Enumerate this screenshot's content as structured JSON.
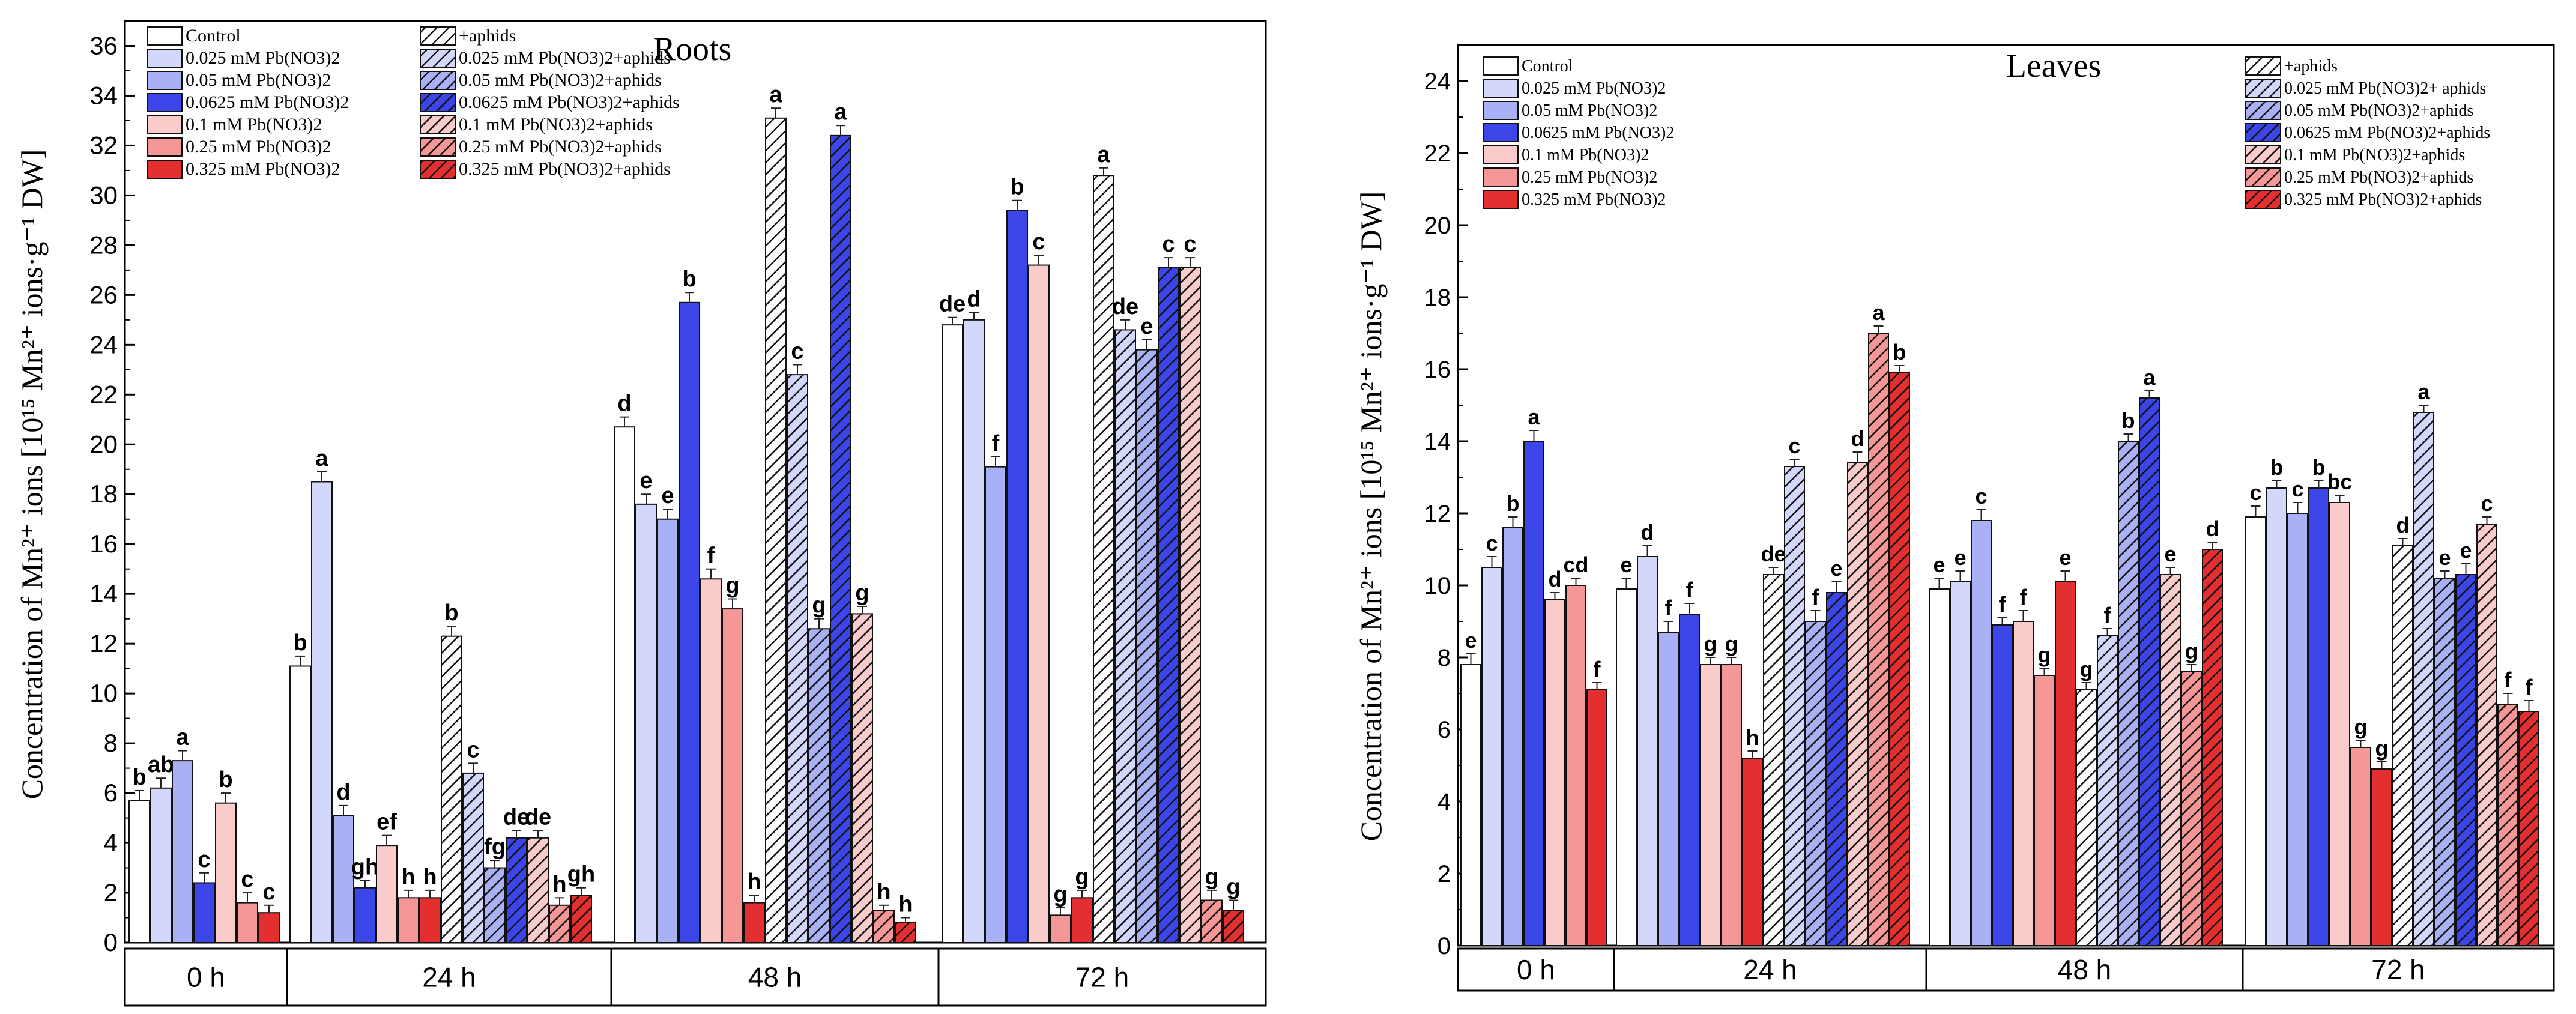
{
  "colors": {
    "control": "#ffffff",
    "pb025": "#d3d7fc",
    "pb05": "#a9b0f4",
    "pb0625": "#3b45e8",
    "pb01": "#f9cccb",
    "pb025b": "#f59796",
    "pb0325": "#e32f2f"
  },
  "chart_data": [
    {
      "type": "bar",
      "title": "Roots",
      "ylabel": "Concentration of Mn²⁺ ions [10¹⁵ Mn²⁺ ions·g⁻¹ DW]",
      "ylim": [
        0,
        37
      ],
      "yticks": [
        0,
        2,
        4,
        6,
        8,
        10,
        12,
        14,
        16,
        18,
        20,
        22,
        24,
        26,
        28,
        30,
        32,
        34,
        36
      ],
      "groups": [
        "0 h",
        "24 h",
        "48 h",
        "72 h"
      ],
      "legend": [
        "Control",
        "0.025 mM Pb(NO3)2",
        "0.05 mM Pb(NO3)2",
        "0.0625 mM Pb(NO3)2",
        "0.1 mM Pb(NO3)2",
        "0.25 mM Pb(NO3)2",
        "0.325 mM Pb(NO3)2",
        "+aphids",
        "0.025 mM Pb(NO3)2+aphids",
        "0.05 mM Pb(NO3)2+aphids",
        "0.0625 mM Pb(NO3)2+aphids",
        "0.1 mM Pb(NO3)2+aphids",
        "0.25 mM Pb(NO3)2+aphids",
        "0.325 mM Pb(NO3)2+aphids"
      ],
      "bars": [
        {
          "group": "0 h",
          "series": 0,
          "value": 5.7,
          "err": 0.4,
          "label": "b"
        },
        {
          "group": "0 h",
          "series": 1,
          "value": 6.2,
          "err": 0.4,
          "label": "ab"
        },
        {
          "group": "0 h",
          "series": 2,
          "value": 7.3,
          "err": 0.4,
          "label": "a"
        },
        {
          "group": "0 h",
          "series": 3,
          "value": 2.4,
          "err": 0.4,
          "label": "c"
        },
        {
          "group": "0 h",
          "series": 4,
          "value": 5.6,
          "err": 0.4,
          "label": "b"
        },
        {
          "group": "0 h",
          "series": 5,
          "value": 1.6,
          "err": 0.4,
          "label": "c"
        },
        {
          "group": "0 h",
          "series": 6,
          "value": 1.2,
          "err": 0.3,
          "label": "c"
        },
        {
          "group": "24 h",
          "series": 0,
          "value": 11.1,
          "err": 0.4,
          "label": "b"
        },
        {
          "group": "24 h",
          "series": 1,
          "value": 18.5,
          "err": 0.4,
          "label": "a"
        },
        {
          "group": "24 h",
          "series": 2,
          "value": 5.1,
          "err": 0.4,
          "label": "d"
        },
        {
          "group": "24 h",
          "series": 3,
          "value": 2.2,
          "err": 0.3,
          "label": "gh"
        },
        {
          "group": "24 h",
          "series": 4,
          "value": 3.9,
          "err": 0.4,
          "label": "ef"
        },
        {
          "group": "24 h",
          "series": 5,
          "value": 1.8,
          "err": 0.3,
          "label": "h"
        },
        {
          "group": "24 h",
          "series": 6,
          "value": 1.8,
          "err": 0.3,
          "label": "h"
        },
        {
          "group": "24 h",
          "series": 7,
          "value": 12.3,
          "err": 0.4,
          "label": "b"
        },
        {
          "group": "24 h",
          "series": 8,
          "value": 6.8,
          "err": 0.4,
          "label": "c"
        },
        {
          "group": "24 h",
          "series": 9,
          "value": 3.0,
          "err": 0.3,
          "label": "fg"
        },
        {
          "group": "24 h",
          "series": 10,
          "value": 4.2,
          "err": 0.3,
          "label": "de"
        },
        {
          "group": "24 h",
          "series": 11,
          "value": 4.2,
          "err": 0.3,
          "label": "de"
        },
        {
          "group": "24 h",
          "series": 12,
          "value": 1.5,
          "err": 0.3,
          "label": "h"
        },
        {
          "group": "24 h",
          "series": 13,
          "value": 1.9,
          "err": 0.3,
          "label": "gh"
        },
        {
          "group": "48 h",
          "series": 0,
          "value": 20.7,
          "err": 0.4,
          "label": "d"
        },
        {
          "group": "48 h",
          "series": 1,
          "value": 17.6,
          "err": 0.4,
          "label": "e"
        },
        {
          "group": "48 h",
          "series": 2,
          "value": 17.0,
          "err": 0.4,
          "label": "e"
        },
        {
          "group": "48 h",
          "series": 3,
          "value": 25.7,
          "err": 0.4,
          "label": "b"
        },
        {
          "group": "48 h",
          "series": 4,
          "value": 14.6,
          "err": 0.4,
          "label": "f"
        },
        {
          "group": "48 h",
          "series": 5,
          "value": 13.4,
          "err": 0.4,
          "label": "g"
        },
        {
          "group": "48 h",
          "series": 6,
          "value": 1.6,
          "err": 0.3,
          "label": "h"
        },
        {
          "group": "48 h",
          "series": 7,
          "value": 33.1,
          "err": 0.4,
          "label": "a"
        },
        {
          "group": "48 h",
          "series": 8,
          "value": 22.8,
          "err": 0.4,
          "label": "c"
        },
        {
          "group": "48 h",
          "series": 9,
          "value": 12.6,
          "err": 0.4,
          "label": "g"
        },
        {
          "group": "48 h",
          "series": 10,
          "value": 32.4,
          "err": 0.4,
          "label": "a"
        },
        {
          "group": "48 h",
          "series": 11,
          "value": 13.2,
          "err": 0.3,
          "label": "g"
        },
        {
          "group": "48 h",
          "series": 12,
          "value": 1.3,
          "err": 0.2,
          "label": "h"
        },
        {
          "group": "48 h",
          "series": 13,
          "value": 0.8,
          "err": 0.2,
          "label": "h"
        },
        {
          "group": "72 h",
          "series": 0,
          "value": 24.8,
          "err": 0.3,
          "label": "de"
        },
        {
          "group": "72 h",
          "series": 1,
          "value": 25.0,
          "err": 0.3,
          "label": "d"
        },
        {
          "group": "72 h",
          "series": 2,
          "value": 19.1,
          "err": 0.4,
          "label": "f"
        },
        {
          "group": "72 h",
          "series": 3,
          "value": 29.4,
          "err": 0.4,
          "label": "b"
        },
        {
          "group": "72 h",
          "series": 4,
          "value": 27.2,
          "err": 0.4,
          "label": "c"
        },
        {
          "group": "72 h",
          "series": 5,
          "value": 1.1,
          "err": 0.3,
          "label": "g"
        },
        {
          "group": "72 h",
          "series": 6,
          "value": 1.8,
          "err": 0.3,
          "label": "g"
        },
        {
          "group": "72 h",
          "series": 7,
          "value": 30.8,
          "err": 0.3,
          "label": "a"
        },
        {
          "group": "72 h",
          "series": 8,
          "value": 24.6,
          "err": 0.4,
          "label": "de"
        },
        {
          "group": "72 h",
          "series": 9,
          "value": 23.8,
          "err": 0.4,
          "label": "e"
        },
        {
          "group": "72 h",
          "series": 10,
          "value": 27.1,
          "err": 0.4,
          "label": "c"
        },
        {
          "group": "72 h",
          "series": 11,
          "value": 27.1,
          "err": 0.4,
          "label": "c"
        },
        {
          "group": "72 h",
          "series": 12,
          "value": 1.7,
          "err": 0.4,
          "label": "g"
        },
        {
          "group": "72 h",
          "series": 13,
          "value": 1.3,
          "err": 0.4,
          "label": "g"
        }
      ]
    },
    {
      "type": "bar",
      "title": "Leaves",
      "ylabel": "Concentration of Mn²⁺ ions [10¹⁵ Mn²⁺ ions·g⁻¹ DW]",
      "ylim": [
        0,
        25
      ],
      "yticks": [
        0,
        2,
        4,
        6,
        8,
        10,
        12,
        14,
        16,
        18,
        20,
        22,
        24
      ],
      "groups": [
        "0 h",
        "24 h",
        "48 h",
        "72 h"
      ],
      "legend": [
        "Control",
        "0.025 mM Pb(NO3)2",
        "0.05 mM Pb(NO3)2",
        "0.0625 mM Pb(NO3)2",
        "0.1 mM Pb(NO3)2",
        "0.25 mM Pb(NO3)2",
        "0.325 mM Pb(NO3)2",
        "+aphids",
        "0.025 mM Pb(NO3)2+ aphids",
        "0.05 mM Pb(NO3)2+aphids",
        "0.0625 mM Pb(NO3)2+aphids",
        "0.1 mM Pb(NO3)2+aphids",
        "0.25 mM Pb(NO3)2+aphids",
        "0.325 mM Pb(NO3)2+aphids"
      ],
      "bars": [
        {
          "group": "0 h",
          "series": 0,
          "value": 7.8,
          "err": 0.3,
          "label": "e"
        },
        {
          "group": "0 h",
          "series": 1,
          "value": 10.5,
          "err": 0.3,
          "label": "c"
        },
        {
          "group": "0 h",
          "series": 2,
          "value": 11.6,
          "err": 0.3,
          "label": "b"
        },
        {
          "group": "0 h",
          "series": 3,
          "value": 14.0,
          "err": 0.3,
          "label": "a"
        },
        {
          "group": "0 h",
          "series": 4,
          "value": 9.6,
          "err": 0.2,
          "label": "d"
        },
        {
          "group": "0 h",
          "series": 5,
          "value": 10.0,
          "err": 0.2,
          "label": "cd"
        },
        {
          "group": "0 h",
          "series": 6,
          "value": 7.1,
          "err": 0.2,
          "label": "f"
        },
        {
          "group": "24 h",
          "series": 0,
          "value": 9.9,
          "err": 0.3,
          "label": "e"
        },
        {
          "group": "24 h",
          "series": 1,
          "value": 10.8,
          "err": 0.3,
          "label": "d"
        },
        {
          "group": "24 h",
          "series": 2,
          "value": 8.7,
          "err": 0.3,
          "label": "f"
        },
        {
          "group": "24 h",
          "series": 3,
          "value": 9.2,
          "err": 0.3,
          "label": "f"
        },
        {
          "group": "24 h",
          "series": 4,
          "value": 7.8,
          "err": 0.2,
          "label": "g"
        },
        {
          "group": "24 h",
          "series": 5,
          "value": 7.8,
          "err": 0.2,
          "label": "g"
        },
        {
          "group": "24 h",
          "series": 6,
          "value": 5.2,
          "err": 0.2,
          "label": "h"
        },
        {
          "group": "24 h",
          "series": 7,
          "value": 10.3,
          "err": 0.2,
          "label": "de"
        },
        {
          "group": "24 h",
          "series": 8,
          "value": 13.3,
          "err": 0.2,
          "label": "c"
        },
        {
          "group": "24 h",
          "series": 9,
          "value": 9.0,
          "err": 0.3,
          "label": "f"
        },
        {
          "group": "24 h",
          "series": 10,
          "value": 9.8,
          "err": 0.3,
          "label": "e"
        },
        {
          "group": "24 h",
          "series": 11,
          "value": 13.4,
          "err": 0.3,
          "label": "d"
        },
        {
          "group": "24 h",
          "series": 12,
          "value": 17.0,
          "err": 0.2,
          "label": "a"
        },
        {
          "group": "24 h",
          "series": 13,
          "value": 15.9,
          "err": 0.2,
          "label": "b"
        },
        {
          "group": "48 h",
          "series": 0,
          "value": 9.9,
          "err": 0.3,
          "label": "e"
        },
        {
          "group": "48 h",
          "series": 1,
          "value": 10.1,
          "err": 0.3,
          "label": "e"
        },
        {
          "group": "48 h",
          "series": 2,
          "value": 11.8,
          "err": 0.3,
          "label": "c"
        },
        {
          "group": "48 h",
          "series": 3,
          "value": 8.9,
          "err": 0.2,
          "label": "f"
        },
        {
          "group": "48 h",
          "series": 4,
          "value": 9.0,
          "err": 0.3,
          "label": "f"
        },
        {
          "group": "48 h",
          "series": 5,
          "value": 7.5,
          "err": 0.2,
          "label": "g"
        },
        {
          "group": "48 h",
          "series": 6,
          "value": 10.1,
          "err": 0.3,
          "label": "e"
        },
        {
          "group": "48 h",
          "series": 7,
          "value": 7.1,
          "err": 0.2,
          "label": "g"
        },
        {
          "group": "48 h",
          "series": 8,
          "value": 8.6,
          "err": 0.2,
          "label": "f"
        },
        {
          "group": "48 h",
          "series": 9,
          "value": 14.0,
          "err": 0.2,
          "label": "b"
        },
        {
          "group": "48 h",
          "series": 10,
          "value": 15.2,
          "err": 0.2,
          "label": "a"
        },
        {
          "group": "48 h",
          "series": 11,
          "value": 10.3,
          "err": 0.2,
          "label": "e"
        },
        {
          "group": "48 h",
          "series": 12,
          "value": 7.6,
          "err": 0.2,
          "label": "g"
        },
        {
          "group": "48 h",
          "series": 13,
          "value": 11.0,
          "err": 0.2,
          "label": "d"
        },
        {
          "group": "72 h",
          "series": 0,
          "value": 11.9,
          "err": 0.3,
          "label": "c"
        },
        {
          "group": "72 h",
          "series": 1,
          "value": 12.7,
          "err": 0.2,
          "label": "b"
        },
        {
          "group": "72 h",
          "series": 2,
          "value": 12.0,
          "err": 0.3,
          "label": "c"
        },
        {
          "group": "72 h",
          "series": 3,
          "value": 12.7,
          "err": 0.2,
          "label": "b"
        },
        {
          "group": "72 h",
          "series": 4,
          "value": 12.3,
          "err": 0.2,
          "label": "bc"
        },
        {
          "group": "72 h",
          "series": 5,
          "value": 5.5,
          "err": 0.2,
          "label": "g"
        },
        {
          "group": "72 h",
          "series": 6,
          "value": 4.9,
          "err": 0.2,
          "label": "g"
        },
        {
          "group": "72 h",
          "series": 7,
          "value": 11.1,
          "err": 0.2,
          "label": "d"
        },
        {
          "group": "72 h",
          "series": 8,
          "value": 14.8,
          "err": 0.2,
          "label": "a"
        },
        {
          "group": "72 h",
          "series": 9,
          "value": 10.2,
          "err": 0.2,
          "label": "e"
        },
        {
          "group": "72 h",
          "series": 10,
          "value": 10.3,
          "err": 0.3,
          "label": "e"
        },
        {
          "group": "72 h",
          "series": 11,
          "value": 11.7,
          "err": 0.2,
          "label": "c"
        },
        {
          "group": "72 h",
          "series": 12,
          "value": 6.7,
          "err": 0.3,
          "label": "f"
        },
        {
          "group": "72 h",
          "series": 13,
          "value": 6.5,
          "err": 0.3,
          "label": "f"
        }
      ]
    }
  ]
}
